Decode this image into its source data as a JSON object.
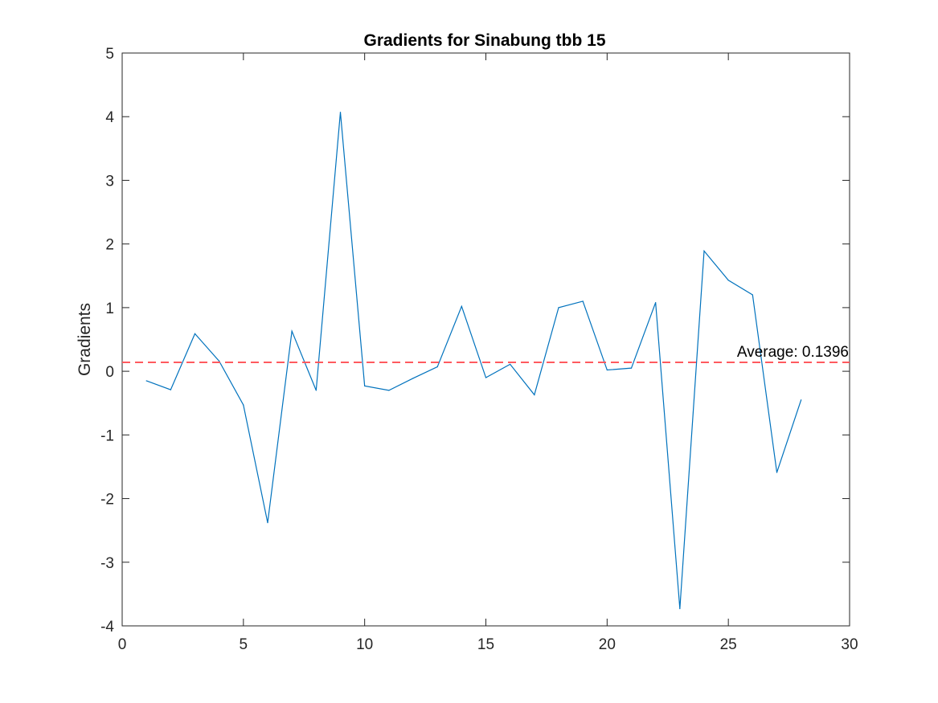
{
  "chart_data": {
    "type": "line",
    "title": "Gradients for Sinabung tbb 15",
    "xlabel": "",
    "ylabel": "Gradients",
    "xlim": [
      0,
      30
    ],
    "ylim": [
      -4,
      5
    ],
    "xticks": [
      0,
      5,
      10,
      15,
      20,
      25,
      30
    ],
    "yticks": [
      -4,
      -3,
      -2,
      -1,
      0,
      1,
      2,
      3,
      4,
      5
    ],
    "grid": false,
    "series": [
      {
        "color": "#0072BD",
        "style": "solid",
        "x": [
          1,
          2,
          3,
          4,
          5,
          6,
          7,
          8,
          9,
          10,
          11,
          12,
          13,
          14,
          15,
          16,
          17,
          18,
          19,
          20,
          21,
          22,
          23,
          24,
          25,
          26,
          27,
          28
        ],
        "y": [
          -0.15,
          -0.29,
          0.59,
          0.16,
          -0.53,
          -2.38,
          0.63,
          -0.3,
          4.07,
          -0.23,
          -0.3,
          -0.11,
          0.07,
          1.02,
          -0.1,
          0.11,
          -0.37,
          1.0,
          1.1,
          0.02,
          0.05,
          1.08,
          -3.73,
          1.89,
          1.43,
          1.2,
          -1.59,
          -0.45
        ]
      }
    ],
    "reference_line": {
      "y": 0.1396,
      "color": "#FF5A5F",
      "style": "dashed",
      "label": "Average: 0.1396"
    }
  }
}
